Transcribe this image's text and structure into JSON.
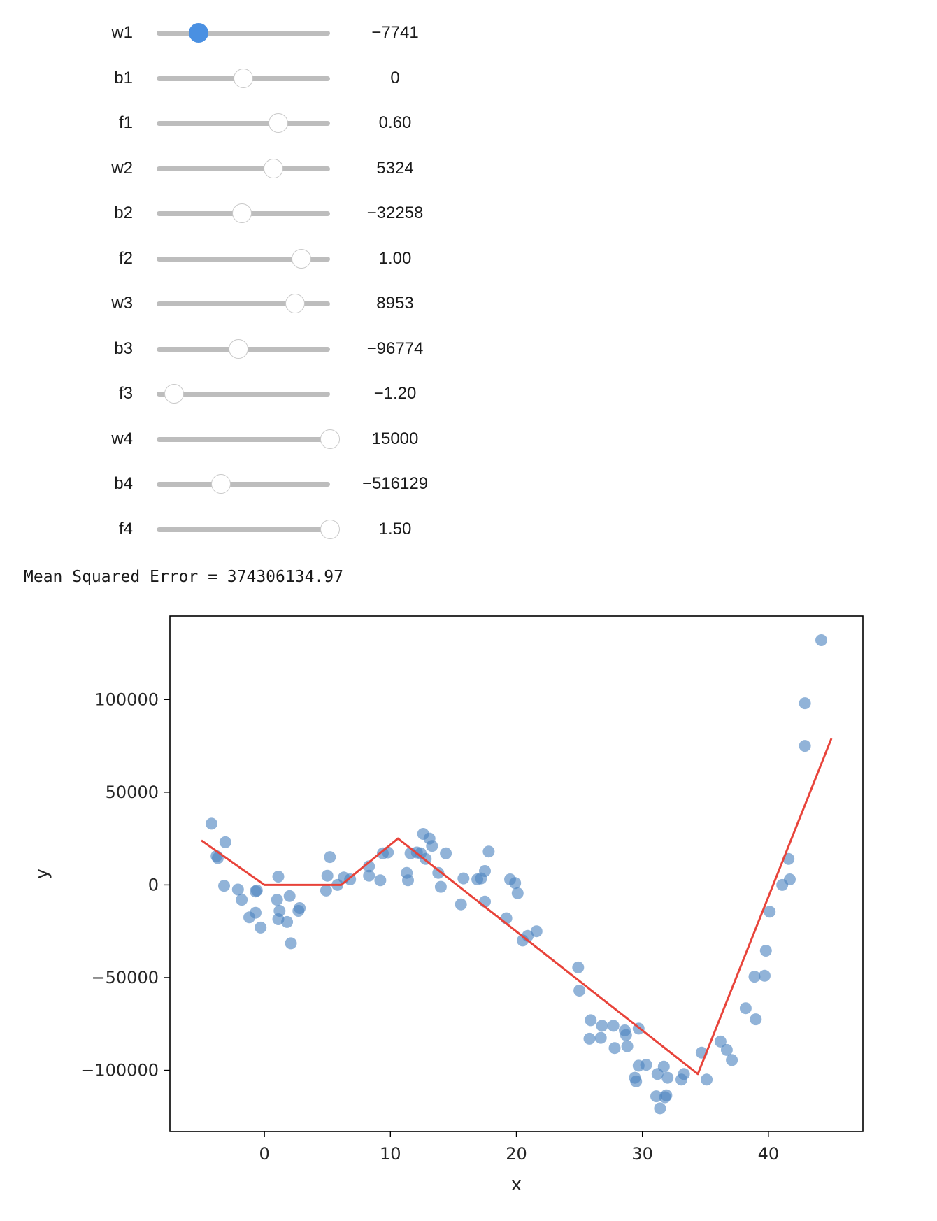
{
  "sliders": [
    {
      "name": "w1",
      "value_label": "−7741",
      "fraction": 0.24,
      "active": true
    },
    {
      "name": "b1",
      "value_label": "0",
      "fraction": 0.5,
      "active": false
    },
    {
      "name": "f1",
      "value_label": "0.60",
      "fraction": 0.7,
      "active": false
    },
    {
      "name": "w2",
      "value_label": "5324",
      "fraction": 0.675,
      "active": false
    },
    {
      "name": "b2",
      "value_label": "−32258",
      "fraction": 0.49,
      "active": false
    },
    {
      "name": "f2",
      "value_label": "1.00",
      "fraction": 0.835,
      "active": false
    },
    {
      "name": "w3",
      "value_label": "8953",
      "fraction": 0.8,
      "active": false
    },
    {
      "name": "b3",
      "value_label": "−96774",
      "fraction": 0.47,
      "active": false
    },
    {
      "name": "f3",
      "value_label": "−1.20",
      "fraction": 0.1,
      "active": false
    },
    {
      "name": "w4",
      "value_label": "15000",
      "fraction": 1.0,
      "active": false
    },
    {
      "name": "b4",
      "value_label": "−516129",
      "fraction": 0.37,
      "active": false
    },
    {
      "name": "f4",
      "value_label": "1.50",
      "fraction": 1.0,
      "active": false
    }
  ],
  "mse": {
    "text": "Mean Squared Error = 374306134.97"
  },
  "chart_data": {
    "type": "scatter",
    "xlabel": "x",
    "ylabel": "y",
    "xlim": [
      -7.5,
      47.5
    ],
    "ylim": [
      -133000,
      145000
    ],
    "xticks": [
      0,
      10,
      20,
      30,
      40
    ],
    "xtick_labels": [
      "0",
      "10",
      "20",
      "30",
      "40"
    ],
    "yticks": [
      -100000,
      -50000,
      0,
      50000,
      100000
    ],
    "ytick_labels": [
      "−100000",
      "−50000",
      "0",
      "50000",
      "100000"
    ],
    "grid": false,
    "point_color": "#4e84c0",
    "line_color": "#e8433a",
    "points": [
      [
        -4.2,
        33000
      ],
      [
        -3.8,
        15500
      ],
      [
        -3.7,
        14500
      ],
      [
        -3.1,
        23000
      ],
      [
        -3.2,
        -500
      ],
      [
        -2.1,
        -2500
      ],
      [
        -1.8,
        -8000
      ],
      [
        -1.2,
        -17500
      ],
      [
        -0.7,
        -15000
      ],
      [
        -0.7,
        -3500
      ],
      [
        -0.6,
        -3000
      ],
      [
        -0.3,
        -23000
      ],
      [
        1.0,
        -8000
      ],
      [
        1.1,
        4500
      ],
      [
        1.1,
        -18500
      ],
      [
        1.2,
        -14000
      ],
      [
        1.8,
        -20000
      ],
      [
        2.0,
        -6000
      ],
      [
        2.1,
        -31500
      ],
      [
        2.7,
        -14000
      ],
      [
        2.8,
        -12500
      ],
      [
        4.9,
        -3000
      ],
      [
        5.0,
        5000
      ],
      [
        5.2,
        15000
      ],
      [
        5.8,
        0
      ],
      [
        6.3,
        4000
      ],
      [
        6.8,
        3000
      ],
      [
        8.3,
        5000
      ],
      [
        8.3,
        10000
      ],
      [
        9.2,
        2500
      ],
      [
        9.4,
        17000
      ],
      [
        9.8,
        17500
      ],
      [
        11.3,
        6500
      ],
      [
        11.4,
        2500
      ],
      [
        11.6,
        17000
      ],
      [
        12.1,
        17500
      ],
      [
        12.4,
        17000
      ],
      [
        12.6,
        27500
      ],
      [
        12.8,
        14000
      ],
      [
        13.1,
        25000
      ],
      [
        13.3,
        21000
      ],
      [
        13.8,
        6500
      ],
      [
        14.0,
        -1000
      ],
      [
        14.4,
        17000
      ],
      [
        15.6,
        -10500
      ],
      [
        15.8,
        3500
      ],
      [
        16.9,
        3000
      ],
      [
        17.2,
        3500
      ],
      [
        17.5,
        7500
      ],
      [
        17.5,
        -9000
      ],
      [
        17.8,
        18000
      ],
      [
        19.2,
        -18000
      ],
      [
        19.5,
        3000
      ],
      [
        19.9,
        1000
      ],
      [
        20.1,
        -4500
      ],
      [
        20.5,
        -30000
      ],
      [
        20.9,
        -27500
      ],
      [
        21.6,
        -25000
      ],
      [
        24.9,
        -44500
      ],
      [
        25.0,
        -57000
      ],
      [
        25.8,
        -83000
      ],
      [
        25.9,
        -73000
      ],
      [
        26.7,
        -82500
      ],
      [
        26.8,
        -76000
      ],
      [
        27.7,
        -76000
      ],
      [
        27.8,
        -88000
      ],
      [
        28.6,
        -78500
      ],
      [
        28.7,
        -81000
      ],
      [
        28.8,
        -87000
      ],
      [
        29.4,
        -104000
      ],
      [
        29.5,
        -106000
      ],
      [
        29.7,
        -77500
      ],
      [
        29.7,
        -97500
      ],
      [
        30.3,
        -97000
      ],
      [
        31.1,
        -114000
      ],
      [
        31.2,
        -102000
      ],
      [
        31.4,
        -120500
      ],
      [
        31.7,
        -98000
      ],
      [
        31.8,
        -114500
      ],
      [
        31.9,
        -113500
      ],
      [
        32.0,
        -104000
      ],
      [
        33.1,
        -105000
      ],
      [
        33.3,
        -102000
      ],
      [
        34.7,
        -90500
      ],
      [
        35.1,
        -105000
      ],
      [
        36.2,
        -84500
      ],
      [
        36.7,
        -89000
      ],
      [
        37.1,
        -94500
      ],
      [
        38.2,
        -66500
      ],
      [
        38.9,
        -49500
      ],
      [
        39.0,
        -72500
      ],
      [
        39.7,
        -49000
      ],
      [
        39.8,
        -35500
      ],
      [
        40.1,
        -14500
      ],
      [
        41.1,
        0
      ],
      [
        41.6,
        14000
      ],
      [
        41.7,
        3000
      ],
      [
        42.9,
        98000
      ],
      [
        42.9,
        75000
      ],
      [
        44.2,
        132000
      ]
    ],
    "fit_line": [
      [
        -5.0,
        24000
      ],
      [
        0.0,
        0
      ],
      [
        6.1,
        0
      ],
      [
        10.6,
        25000
      ],
      [
        34.4,
        -102000
      ],
      [
        45.0,
        79000
      ]
    ]
  }
}
